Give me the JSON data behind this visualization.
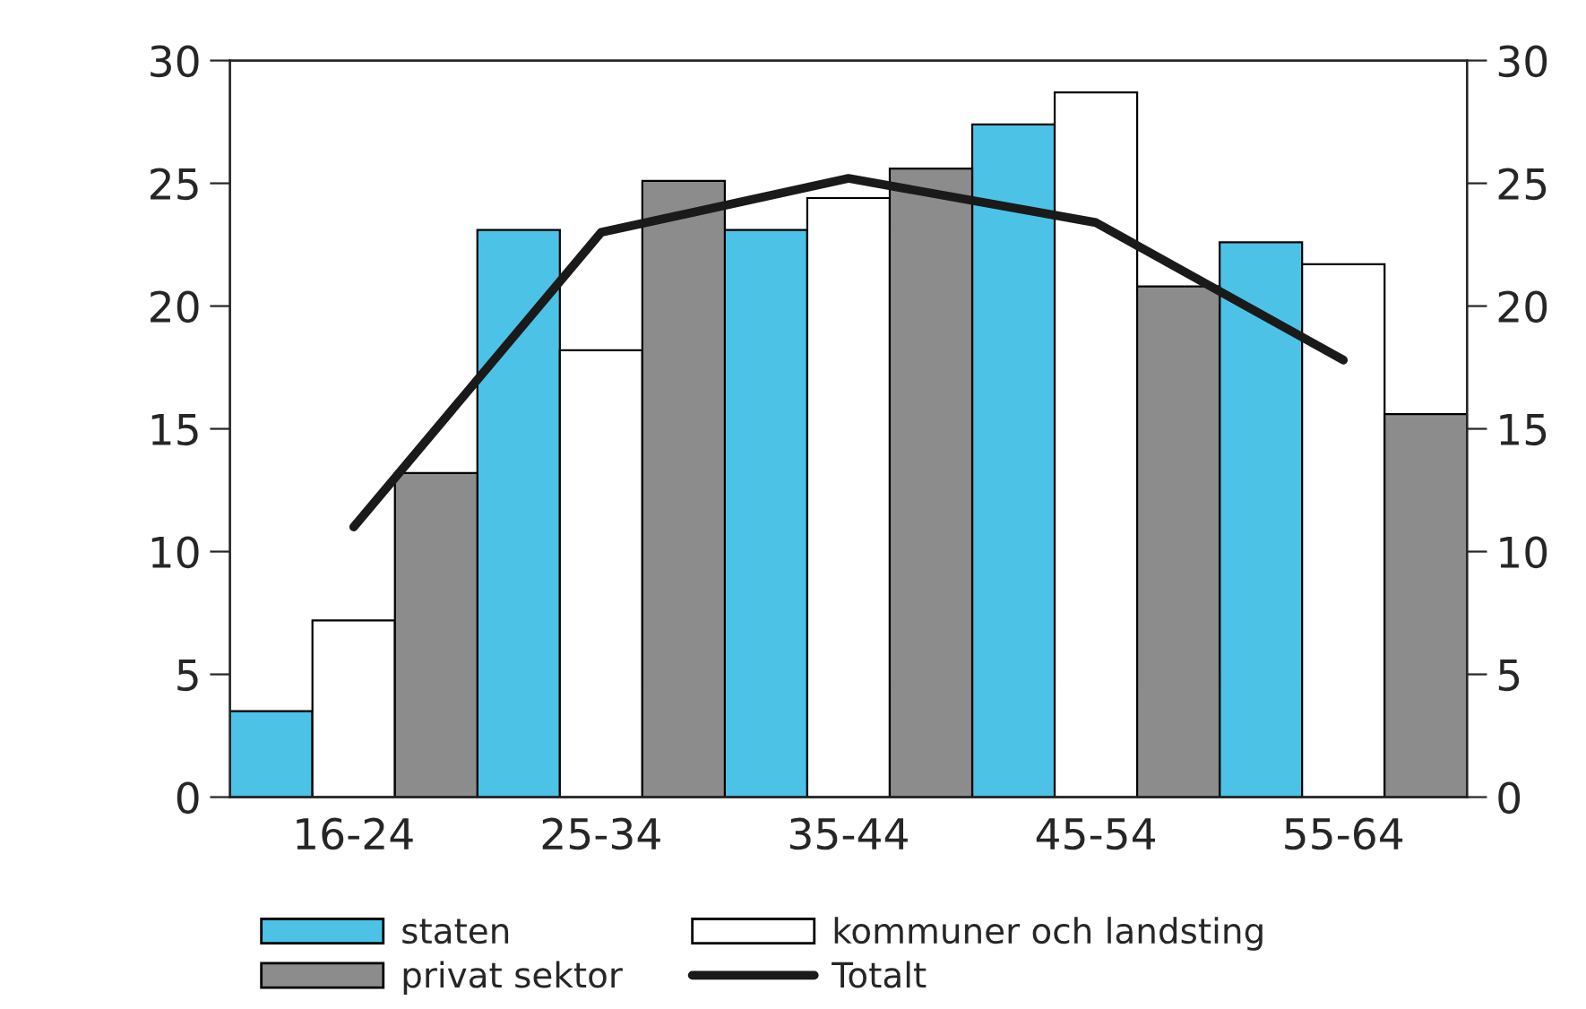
{
  "chart_data": {
    "type": "bar",
    "categories": [
      "16-24",
      "25-34",
      "35-44",
      "45-54",
      "55-64"
    ],
    "series": [
      {
        "name": "staten",
        "color": "#4cc3e6",
        "values": [
          3.5,
          23.1,
          23.1,
          27.4,
          22.6
        ]
      },
      {
        "name": "kommuner och landsting",
        "color": "#ffffff",
        "values": [
          7.2,
          18.2,
          24.4,
          28.7,
          21.7
        ]
      },
      {
        "name": "privat sektor",
        "color": "#8c8c8c",
        "values": [
          13.2,
          25.1,
          25.6,
          20.8,
          15.6
        ]
      },
      {
        "name": "Totalt",
        "type": "line",
        "color": "#1a1a1a",
        "values": [
          11.0,
          23.0,
          25.2,
          23.4,
          17.8
        ],
        "marker": "none",
        "line_style": "solid"
      }
    ],
    "ylim": [
      0,
      30
    ],
    "yticks": [
      0,
      5,
      10,
      15,
      20,
      25,
      30
    ],
    "y2lim": [
      0,
      30
    ],
    "y2ticks": [
      0,
      5,
      10,
      15,
      20,
      25,
      30
    ],
    "grid": false,
    "legend": "bottom"
  }
}
